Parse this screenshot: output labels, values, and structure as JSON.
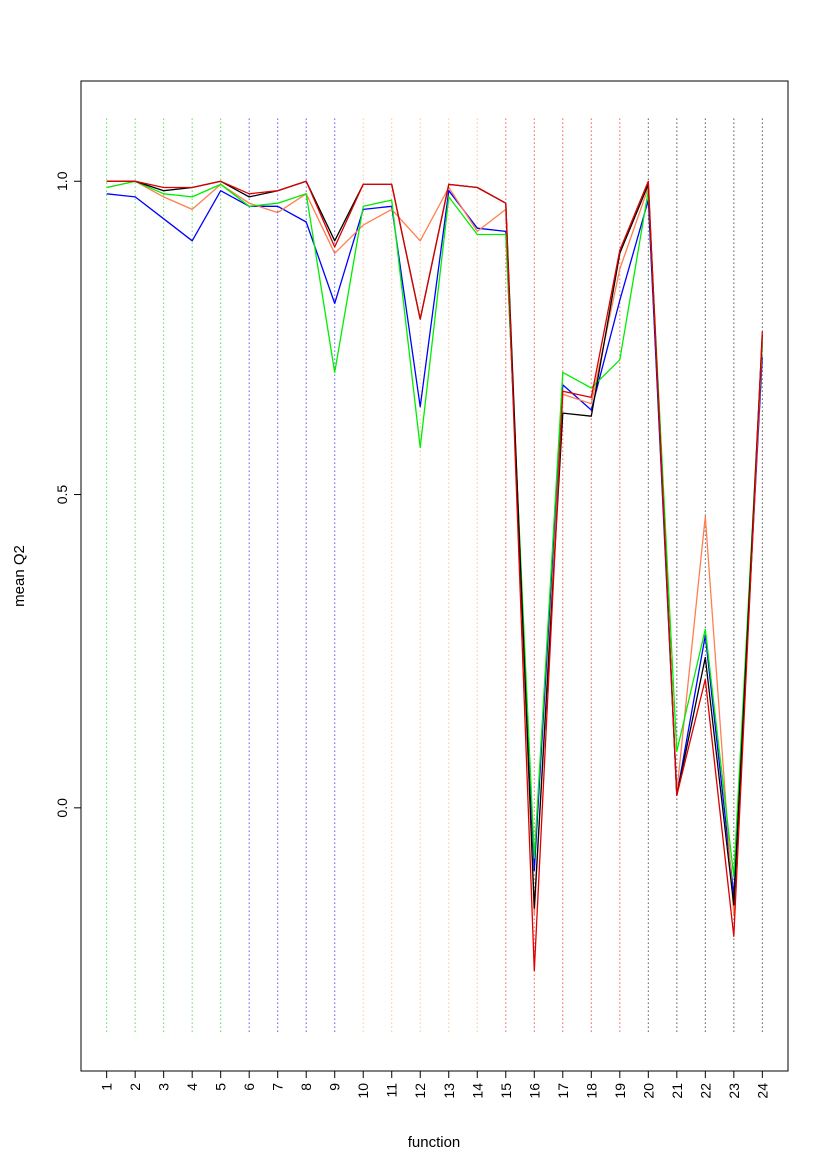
{
  "chart_data": {
    "type": "line",
    "title": "",
    "xlabel": "function",
    "ylabel": "mean Q2",
    "x": [
      1,
      2,
      3,
      4,
      5,
      6,
      7,
      8,
      9,
      10,
      11,
      12,
      13,
      14,
      15,
      16,
      17,
      18,
      19,
      20,
      21,
      22,
      23,
      24
    ],
    "x_tick_labels": [
      "1",
      "2",
      "3",
      "4",
      "5",
      "6",
      "7",
      "8",
      "9",
      "10",
      "11",
      "12",
      "13",
      "14",
      "15",
      "16",
      "17",
      "18",
      "19",
      "20",
      "21",
      "22",
      "23",
      "24"
    ],
    "y_ticks": [
      0.0,
      0.5,
      1.0
    ],
    "y_tick_labels": [
      "0.0",
      "0.5",
      "1.0"
    ],
    "xlim": [
      0.1,
      24.9
    ],
    "ylim": [
      -0.42,
      1.16
    ],
    "grid": "vertical dotted lines at each function, colored by function group",
    "legend": "none",
    "vline_range": [
      -0.36,
      1.1
    ],
    "vline_colors": [
      "#00cc00",
      "#00cc00",
      "#00cc00",
      "#00cc00",
      "#00cc00",
      "#0000ff",
      "#0000ff",
      "#0000ff",
      "#0000ff",
      "#ffa54f",
      "#ffa54f",
      "#ffa54f",
      "#ffa54f",
      "#ffa54f",
      "#ff0000",
      "#ff0000",
      "#ff0000",
      "#ff0000",
      "#ff0000",
      "#000000",
      "#000000",
      "#000000",
      "#000000",
      "#000000"
    ],
    "series": [
      {
        "color": "#0000ff",
        "values": [
          0.98,
          0.975,
          0.94,
          0.905,
          0.985,
          0.96,
          0.96,
          0.935,
          0.805,
          0.955,
          0.96,
          0.64,
          0.985,
          0.925,
          0.92,
          -0.1,
          0.675,
          0.635,
          0.81,
          0.97,
          0.02,
          0.275,
          -0.14,
          0.72
        ]
      },
      {
        "color": "#ff7f50",
        "values": [
          0.99,
          1.0,
          0.975,
          0.955,
          0.995,
          0.965,
          0.95,
          0.98,
          0.885,
          0.93,
          0.955,
          0.905,
          0.99,
          0.92,
          0.955,
          -0.17,
          0.66,
          0.645,
          0.86,
          0.99,
          0.025,
          0.465,
          -0.17,
          0.74
        ]
      },
      {
        "color": "#00ee00",
        "values": [
          0.99,
          1.0,
          0.98,
          0.975,
          0.995,
          0.96,
          0.965,
          0.98,
          0.695,
          0.96,
          0.97,
          0.575,
          0.975,
          0.915,
          0.915,
          -0.08,
          0.695,
          0.67,
          0.715,
          0.985,
          0.09,
          0.285,
          -0.11,
          0.745
        ]
      },
      {
        "color": "#000000",
        "values": [
          1.0,
          1.0,
          0.985,
          0.99,
          1.0,
          0.975,
          0.985,
          1.0,
          0.905,
          0.995,
          0.995,
          0.78,
          0.995,
          0.99,
          0.965,
          -0.16,
          0.63,
          0.625,
          0.885,
          0.995,
          0.02,
          0.24,
          -0.155,
          0.755
        ]
      },
      {
        "color": "#dd0000",
        "values": [
          1.0,
          1.0,
          0.99,
          0.99,
          1.0,
          0.98,
          0.985,
          1.0,
          0.895,
          0.995,
          0.995,
          0.78,
          0.995,
          0.99,
          0.965,
          -0.26,
          0.665,
          0.655,
          0.89,
          1.0,
          0.02,
          0.205,
          -0.205,
          0.76
        ]
      }
    ]
  }
}
